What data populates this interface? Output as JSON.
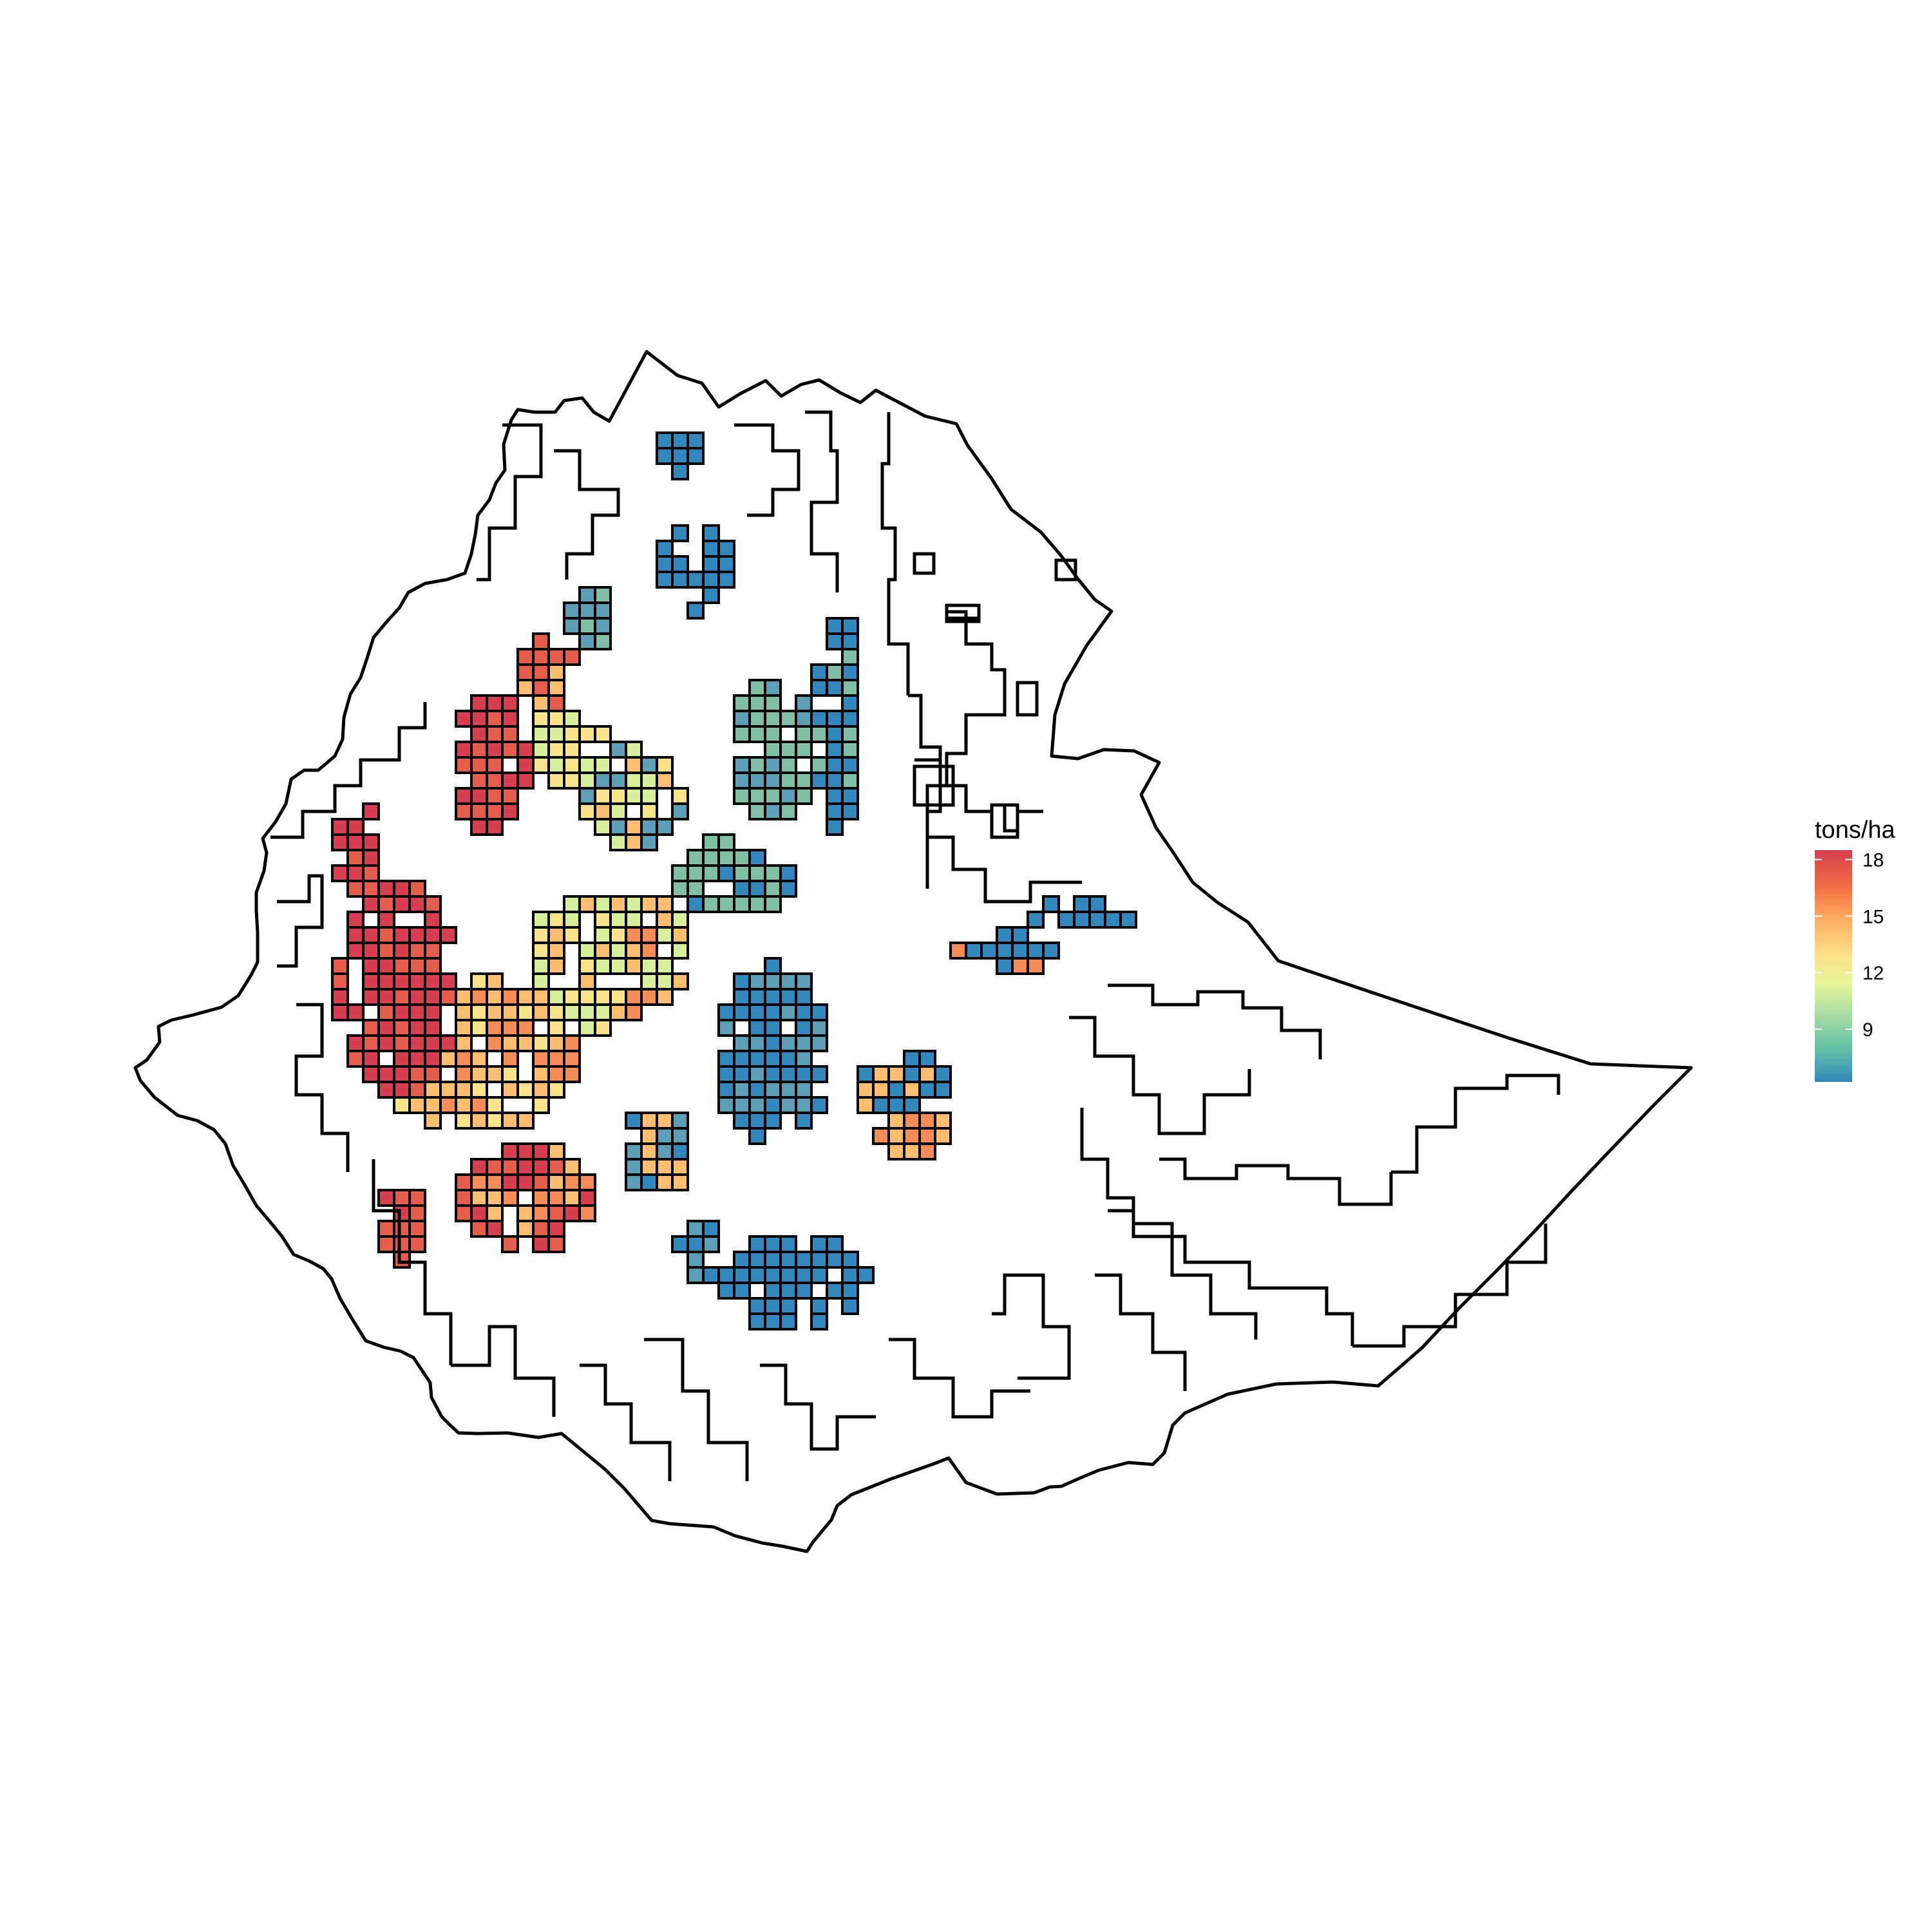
{
  "legend": {
    "title": "tons/ha",
    "ticks": [
      "18",
      "15",
      "12",
      "9"
    ],
    "tick_values": [
      18,
      15,
      12,
      9
    ],
    "scale_min": 6.2,
    "scale_max": 18.5,
    "palette": [
      "#3288bd",
      "#66c2a5",
      "#abdda4",
      "#e6f598",
      "#fee08b",
      "#fdae61",
      "#f46d43",
      "#d53e4f"
    ]
  },
  "map": {
    "border_color": "#000000",
    "fill_missing": "#ffffff",
    "value_classes": [
      {
        "value": 7.0,
        "color": "#3288bd"
      },
      {
        "value": 8.5,
        "color": "#5e9fb8"
      },
      {
        "value": 9.5,
        "color": "#80bfa4"
      },
      {
        "value": 11.0,
        "color": "#d7ee9b"
      },
      {
        "value": 12.5,
        "color": "#f9e38b"
      },
      {
        "value": 14.5,
        "color": "#fdbe72"
      },
      {
        "value": 16.0,
        "color": "#f58d59"
      },
      {
        "value": 17.5,
        "color": "#e45c4c"
      },
      {
        "value": 18.3,
        "color": "#d53e4f"
      }
    ]
  }
}
